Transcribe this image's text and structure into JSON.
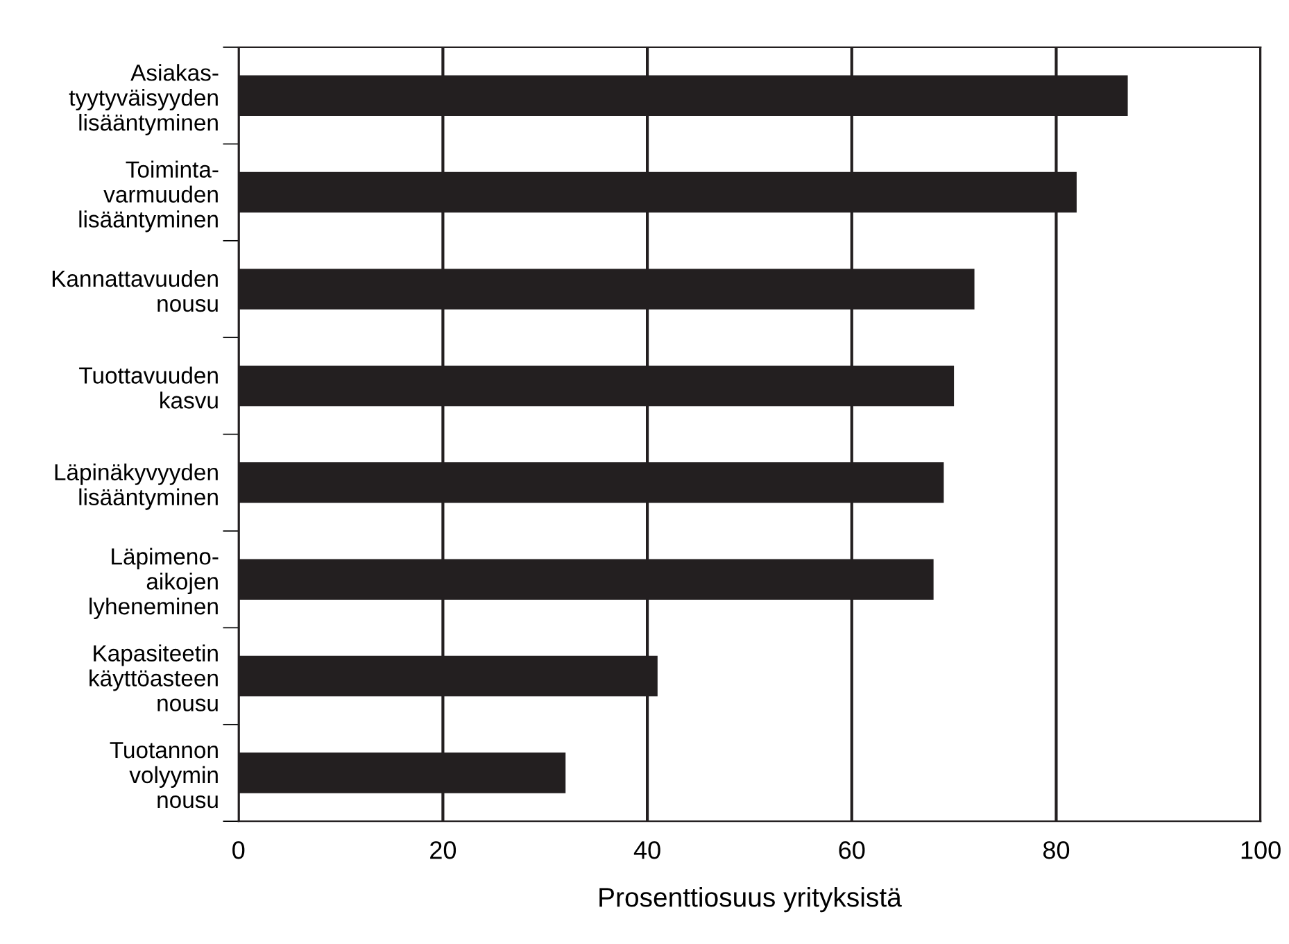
{
  "chart_data": {
    "type": "bar",
    "orientation": "horizontal",
    "xlabel": "Prosenttiosuus yrityksistä",
    "categories": [
      "Asiakas-\ntyytyväisyyden\nlisääntyminen",
      "Toiminta-\nvarmuuden\nlisääntyminen",
      "Kannattavuuden\nnousu",
      "Tuottavuuden\nkasvu",
      "Läpinäkyvyyden\nlisääntyminen",
      "Läpimeno-\naikojen\nlyheneminen",
      "Kapasiteetin\nkäyttöasteen\nnousu",
      "Tuotannon\nvolyymin\nnousu"
    ],
    "values": [
      87,
      82,
      72,
      70,
      69,
      68,
      41,
      32
    ],
    "color": "#231f20",
    "xlim": [
      0,
      100
    ],
    "xticks": [
      0,
      20,
      40,
      60,
      80,
      100
    ],
    "grid": "x"
  }
}
